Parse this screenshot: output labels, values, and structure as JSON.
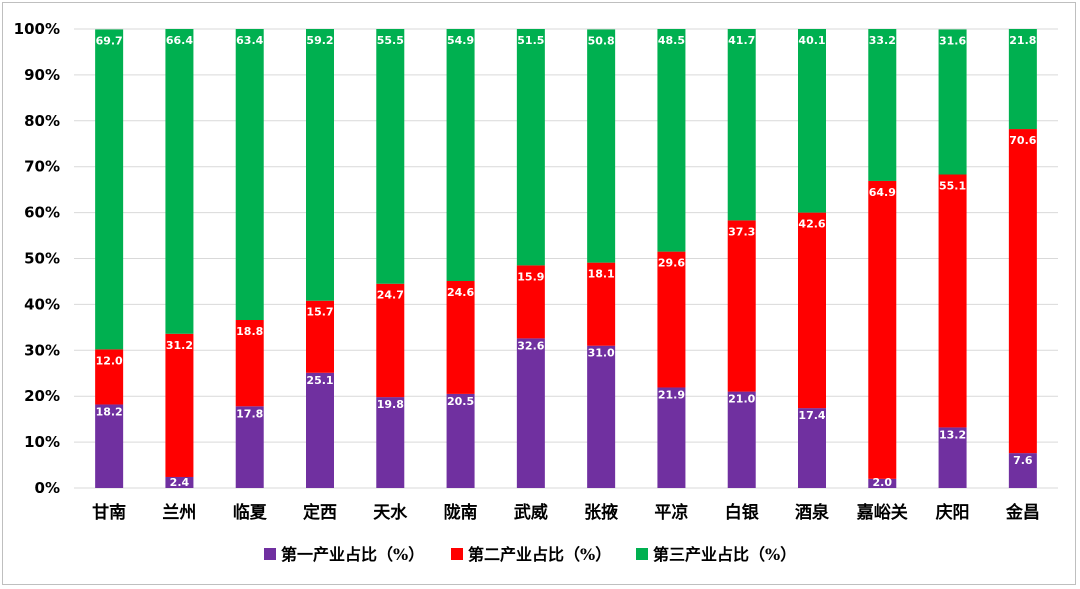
{
  "chart_data": {
    "type": "bar",
    "stacked": true,
    "title": "",
    "xlabel": "",
    "ylabel": "",
    "ylim": [
      0,
      100
    ],
    "y_ticks": [
      "0%",
      "10%",
      "20%",
      "30%",
      "40%",
      "50%",
      "60%",
      "70%",
      "80%",
      "90%",
      "100%"
    ],
    "grid": true,
    "legend_position": "bottom",
    "categories": [
      "甘南",
      "兰州",
      "临夏",
      "定西",
      "天水",
      "陇南",
      "武威",
      "张掖",
      "平凉",
      "白银",
      "酒泉",
      "嘉峪关",
      "庆阳",
      "金昌"
    ],
    "series": [
      {
        "name": "第一产业占比（%）",
        "color": "#7030A0",
        "values": [
          18.2,
          2.4,
          17.8,
          25.1,
          19.8,
          20.5,
          32.6,
          31.0,
          21.9,
          21.0,
          17.4,
          2.0,
          13.2,
          7.6
        ],
        "labels": [
          "18.2",
          "2.4",
          "17.8",
          "25.1",
          "19.8",
          "20.5",
          "32.6",
          "31.0",
          "21.9",
          "21.0",
          "17.4",
          "2.0",
          "13.2",
          "7.6"
        ]
      },
      {
        "name": "第二产业占比（%）",
        "color": "#FF0000",
        "values": [
          12.0,
          31.2,
          18.8,
          15.7,
          24.7,
          24.6,
          15.9,
          18.1,
          29.6,
          37.3,
          42.6,
          64.9,
          55.1,
          70.6
        ],
        "labels": [
          "12.0",
          "31.2",
          "18.8",
          "15.7",
          "24.7",
          "24.6",
          "15.9",
          "18.1",
          "29.6",
          "37.3",
          "42.6",
          "64.9",
          "55.1",
          "70.6"
        ]
      },
      {
        "name": "第三产业占比（%）",
        "color": "#00B050",
        "values": [
          69.7,
          66.4,
          63.4,
          59.2,
          55.5,
          54.9,
          51.5,
          50.8,
          48.5,
          41.7,
          40.1,
          33.2,
          31.6,
          21.8
        ],
        "labels": [
          "69.7",
          "66.4",
          "63.4",
          "59.2",
          "55.5",
          "54.9",
          "51.5",
          "50.8",
          "48.5",
          "41.7",
          "40.1",
          "33.2",
          "31.6",
          "21.8"
        ]
      }
    ]
  }
}
